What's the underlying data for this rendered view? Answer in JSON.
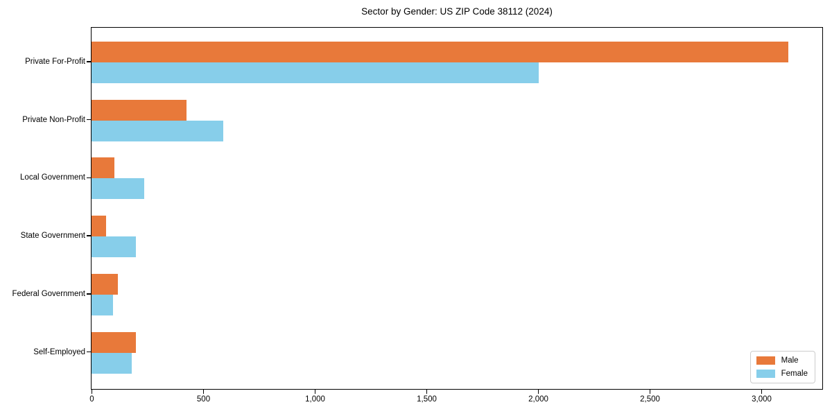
{
  "chart_data": {
    "type": "bar",
    "orientation": "horizontal",
    "title": "Sector by Gender: US ZIP Code 38112 (2024)",
    "xlabel": "",
    "ylabel": "",
    "categories": [
      "Private For-Profit",
      "Private Non-Profit",
      "Local Government",
      "State Government",
      "Federal Government",
      "Self-Employed"
    ],
    "series": [
      {
        "name": "Male",
        "color": "#e8793a",
        "values": [
          3120,
          425,
          101,
          66,
          119,
          199
        ]
      },
      {
        "name": "Female",
        "color": "#87ceea",
        "values": [
          2003,
          590,
          235,
          198,
          97,
          181
        ]
      }
    ],
    "xlim": [
      0,
      3270
    ],
    "xticks": [
      0,
      500,
      1000,
      1500,
      2000,
      2500,
      3000
    ],
    "xtick_labels": [
      "0",
      "500",
      "1,000",
      "1,500",
      "2,000",
      "2,500",
      "3,000"
    ],
    "grid": false,
    "legend_position": "lower right",
    "background_color": "#ffffff",
    "text_color": "#000000"
  }
}
